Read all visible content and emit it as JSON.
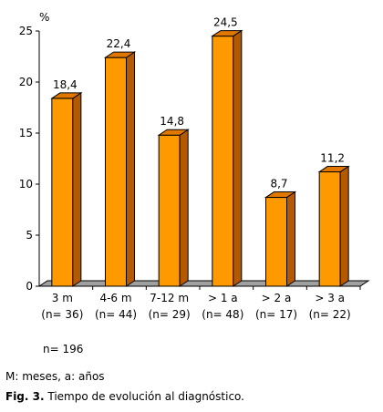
{
  "chart_data": {
    "type": "bar",
    "ylabel": "%",
    "ylim": [
      0,
      25
    ],
    "yticks": [
      "0",
      "5",
      "10",
      "15",
      "20",
      "25"
    ],
    "categories": [
      "3 m",
      "4-6 m",
      "7-12 m",
      "> 1 a",
      "> 2 a",
      "> 3 a"
    ],
    "sublabels": [
      "(n= 36)",
      "(n= 44)",
      "(n= 29)",
      "(n= 48)",
      "(n= 17)",
      "(n= 22)"
    ],
    "values": [
      18.4,
      22.4,
      14.8,
      24.5,
      8.7,
      11.2
    ],
    "value_labels": [
      "18,4",
      "22,4",
      "14,8",
      "24,5",
      "8,7",
      "11,2"
    ],
    "grid": false,
    "legend": "none",
    "colors": {
      "bar_front": "#FF9900",
      "bar_side": "#B35A00",
      "bar_top": "#E07800",
      "floor": "#A0A0A0",
      "stroke": "#000000"
    }
  },
  "footer": {
    "n_total": "n= 196",
    "abbreviations": "M: meses, a: años",
    "caption_label": "Fig. 3.",
    "caption_text": " Tiempo de evolución al diagnóstico."
  }
}
